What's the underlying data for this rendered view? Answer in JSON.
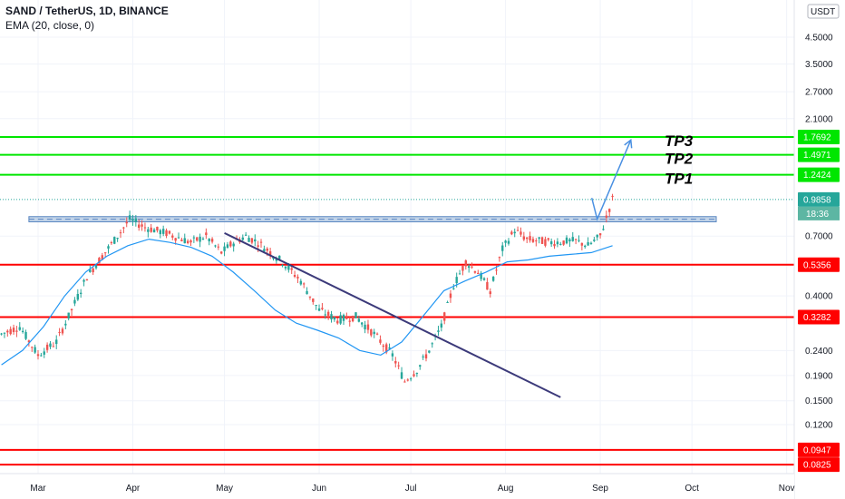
{
  "header": {
    "symbol_line": "SAND / TetherUS, 1D, BINANCE",
    "indicator_line": "EMA (20, close, 0)"
  },
  "currency_badge": "USDT",
  "colors": {
    "up": "#26a69a",
    "down": "#ef5350",
    "ema": "#2196f3",
    "support": "#ff0000",
    "target": "#00e600",
    "trend": "#3c3a7a",
    "zone": "#8fb0d6",
    "arrow": "#4a90e2",
    "price_tag": "#26a69a",
    "timer_tag": "#5db6a3"
  },
  "chart_data": {
    "type": "candlestick",
    "scale": "log",
    "price_axis_ticks": [
      "4.5000",
      "3.5000",
      "2.7000",
      "2.1000",
      "0.7000",
      "0.4000",
      "0.2400",
      "0.1900",
      "0.1500",
      "0.1200"
    ],
    "time_axis_ticks": [
      "Mar",
      "Apr",
      "May",
      "Jun",
      "Jul",
      "Aug",
      "Sep",
      "Oct",
      "Nov"
    ],
    "current_price": "0.9858",
    "countdown": "18:36",
    "support_levels": [
      "0.5356",
      "0.3282",
      "0.0947",
      "0.0825"
    ],
    "target_levels": [
      {
        "label": "TP3",
        "price": "1.7692"
      },
      {
        "label": "TP2",
        "price": "1.4971"
      },
      {
        "label": "TP1",
        "price": "1.2424"
      }
    ],
    "resistance_zone": {
      "low": 0.8,
      "high": 0.84
    },
    "trendline": {
      "from_date": "May 1",
      "from_price": 0.72,
      "to_date": "Aug 19",
      "to_price": 0.155
    },
    "projection": {
      "points": [
        [
          "Aug 31",
          0.82
        ],
        [
          "Sep 11",
          1.72
        ]
      ]
    },
    "series": [
      {
        "name": "EMA (20, close, 0)",
        "values": [
          0.21,
          0.24,
          0.3,
          0.4,
          0.5,
          0.58,
          0.64,
          0.68,
          0.66,
          0.63,
          0.58,
          0.5,
          0.42,
          0.35,
          0.31,
          0.29,
          0.27,
          0.24,
          0.23,
          0.26,
          0.33,
          0.42,
          0.46,
          0.5,
          0.55,
          0.56,
          0.58,
          0.59,
          0.6,
          0.64
        ]
      }
    ]
  }
}
